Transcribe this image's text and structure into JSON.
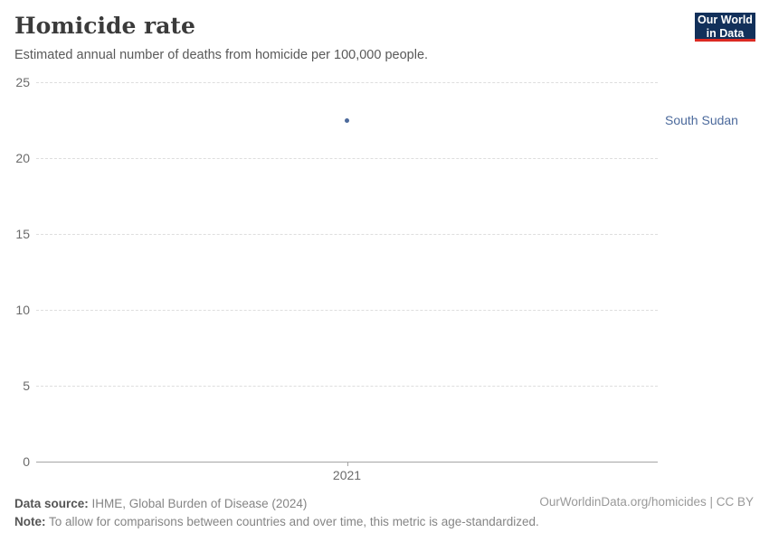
{
  "header": {
    "title": "Homicide rate",
    "subtitle": "Estimated annual number of deaths from homicide per 100,000 people.",
    "logo": {
      "line1": "Our World",
      "line2": "in Data",
      "bg_color": "#12305a",
      "accent_color": "#dc2a22"
    }
  },
  "chart_data": {
    "type": "scatter",
    "title": "Homicide rate",
    "subtitle": "Estimated annual number of deaths from homicide per 100,000 people.",
    "x": [
      2021
    ],
    "xticks": [
      "2021"
    ],
    "series": [
      {
        "name": "South Sudan",
        "values": [
          22.5
        ],
        "color": "#4c6a9c"
      }
    ],
    "ylim": [
      0,
      25
    ],
    "yticks": [
      0,
      5,
      10,
      15,
      20,
      25
    ],
    "xlabel": "",
    "ylabel": "",
    "grid": "horizontal-dashed",
    "legend_position": "right-of-plot-entity-label"
  },
  "footer": {
    "datasource_label": "Data source:",
    "datasource_text": " IHME, Global Burden of Disease (2024)",
    "note_label": "Note:",
    "note_text": " To allow for comparisons between countries and over time, this metric is age-standardized.",
    "link": "OurWorldinData.org/homicides | CC BY"
  }
}
